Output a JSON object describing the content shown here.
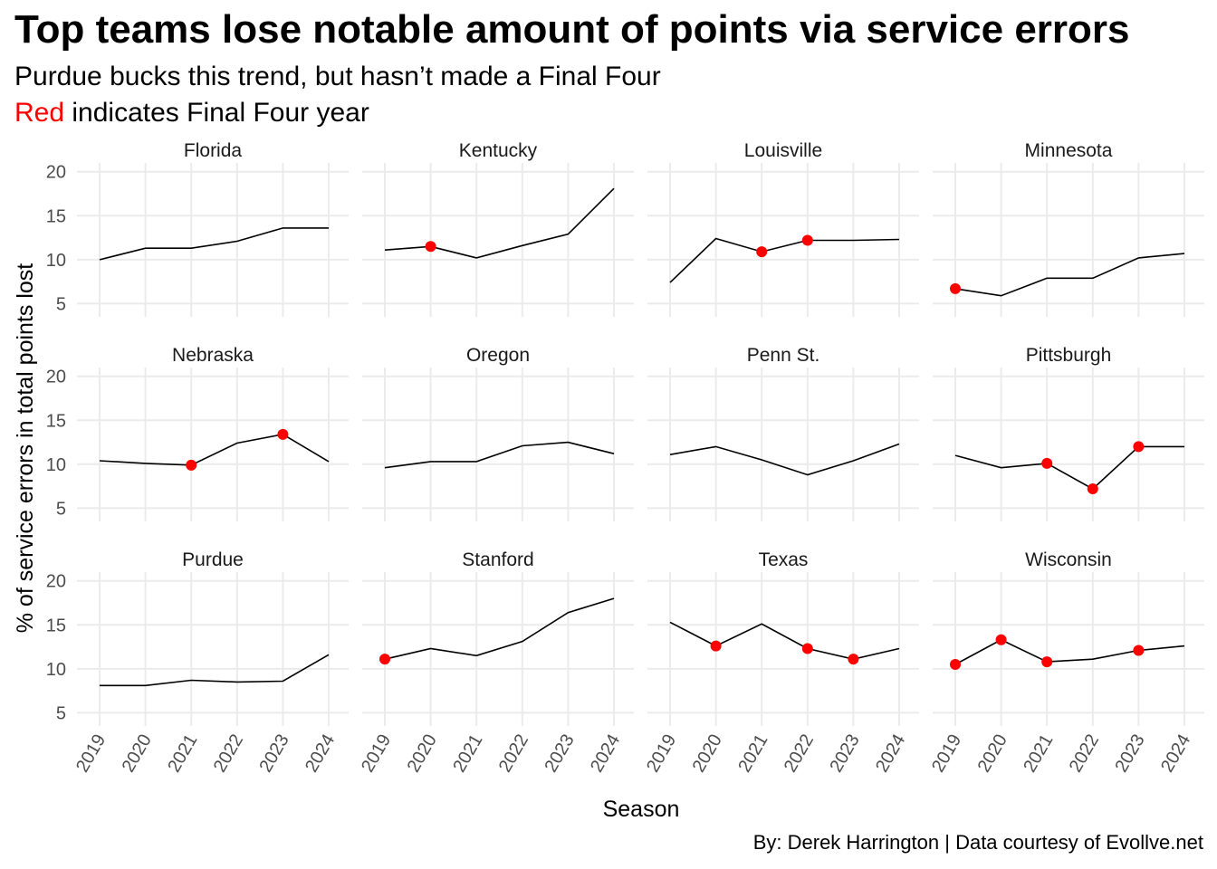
{
  "title": "Top teams lose notable amount of points via service errors",
  "subtitle": "Purdue bucks this trend, but hasn’t made a Final Four",
  "subtitle2": {
    "highlight": "Red",
    "rest": " indicates Final Four year"
  },
  "caption": "By: Derek Harrington  |  Data courtesy of Evollve.net",
  "colors": {
    "line": "#000000",
    "final_four_point": "#ff0000",
    "grid": "#ebebeb"
  },
  "chart_data": {
    "type": "line",
    "facet": "small-multiples 3x4",
    "xlabel": "Season",
    "ylabel": "% of service errors in total points lost",
    "x": [
      "2019",
      "2020",
      "2021",
      "2022",
      "2023",
      "2024"
    ],
    "yticks": [
      5,
      10,
      15,
      20
    ],
    "ylim": [
      3.5,
      21
    ],
    "grid": true,
    "legend": "none",
    "series": [
      {
        "name": "Florida",
        "values": [
          10.0,
          11.3,
          11.3,
          12.1,
          13.6,
          13.6
        ],
        "final_four": []
      },
      {
        "name": "Kentucky",
        "values": [
          11.1,
          11.5,
          10.2,
          11.6,
          12.9,
          18.1
        ],
        "final_four": [
          "2020"
        ]
      },
      {
        "name": "Louisville",
        "values": [
          7.4,
          12.4,
          10.9,
          12.2,
          12.2,
          12.3
        ],
        "final_four": [
          "2021",
          "2022"
        ]
      },
      {
        "name": "Minnesota",
        "values": [
          6.7,
          5.9,
          7.9,
          7.9,
          10.2,
          10.7
        ],
        "final_four": [
          "2019"
        ]
      },
      {
        "name": "Nebraska",
        "values": [
          10.4,
          10.1,
          9.9,
          12.4,
          13.4,
          10.3
        ],
        "final_four": [
          "2021",
          "2023"
        ]
      },
      {
        "name": "Oregon",
        "values": [
          9.6,
          10.3,
          10.3,
          12.1,
          12.5,
          11.2
        ],
        "final_four": []
      },
      {
        "name": "Penn St.",
        "values": [
          11.1,
          12.0,
          10.5,
          8.8,
          10.4,
          12.3
        ],
        "final_four": []
      },
      {
        "name": "Pittsburgh",
        "values": [
          11.0,
          9.6,
          10.1,
          7.2,
          12.0,
          12.0
        ],
        "final_four": [
          "2021",
          "2022",
          "2023"
        ]
      },
      {
        "name": "Purdue",
        "values": [
          8.1,
          8.1,
          8.7,
          8.5,
          8.6,
          11.6
        ],
        "final_four": []
      },
      {
        "name": "Stanford",
        "values": [
          11.1,
          12.3,
          11.5,
          13.1,
          16.4,
          18.0
        ],
        "final_four": [
          "2019"
        ]
      },
      {
        "name": "Texas",
        "values": [
          15.3,
          12.6,
          15.1,
          12.3,
          11.1,
          12.3
        ],
        "final_four": [
          "2020",
          "2022",
          "2023"
        ]
      },
      {
        "name": "Wisconsin",
        "values": [
          10.5,
          13.3,
          10.8,
          11.1,
          12.1,
          12.6
        ],
        "final_four": [
          "2019",
          "2020",
          "2021",
          "2023"
        ]
      }
    ]
  }
}
